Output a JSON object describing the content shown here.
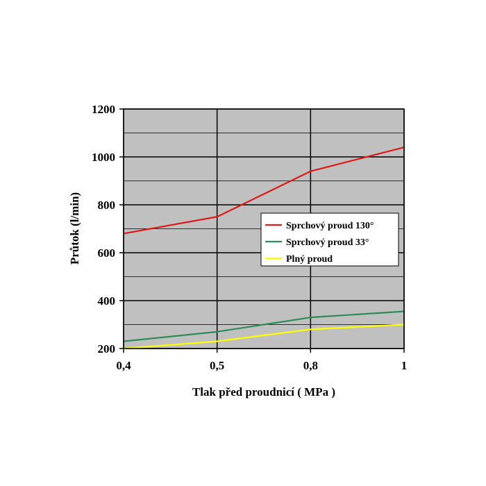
{
  "chart_data": {
    "type": "line",
    "title": "",
    "xlabel": "Tlak před proudnicí  ( MPa )",
    "ylabel": "Průtok (l/min)",
    "categories": [
      "0,4",
      "0,5",
      "0,8",
      "1"
    ],
    "ylim": [
      200,
      1200
    ],
    "yticks": [
      200,
      400,
      600,
      800,
      1000,
      1200
    ],
    "minor_gridlines_every": 100,
    "grid": true,
    "legend_position": "right-middle",
    "series": [
      {
        "name": "Sprchový proud 130°",
        "color": "#dd1a1a",
        "values": [
          680,
          750,
          940,
          1040
        ]
      },
      {
        "name": "Sprchový proud 33°",
        "color": "#2e8b57",
        "values": [
          230,
          270,
          330,
          355
        ]
      },
      {
        "name": "Plný proud",
        "color": "#ffff00",
        "values": [
          200,
          230,
          280,
          300
        ]
      }
    ],
    "colors": {
      "plot_background": "#c0c0c0",
      "gridline": "#000000"
    }
  }
}
